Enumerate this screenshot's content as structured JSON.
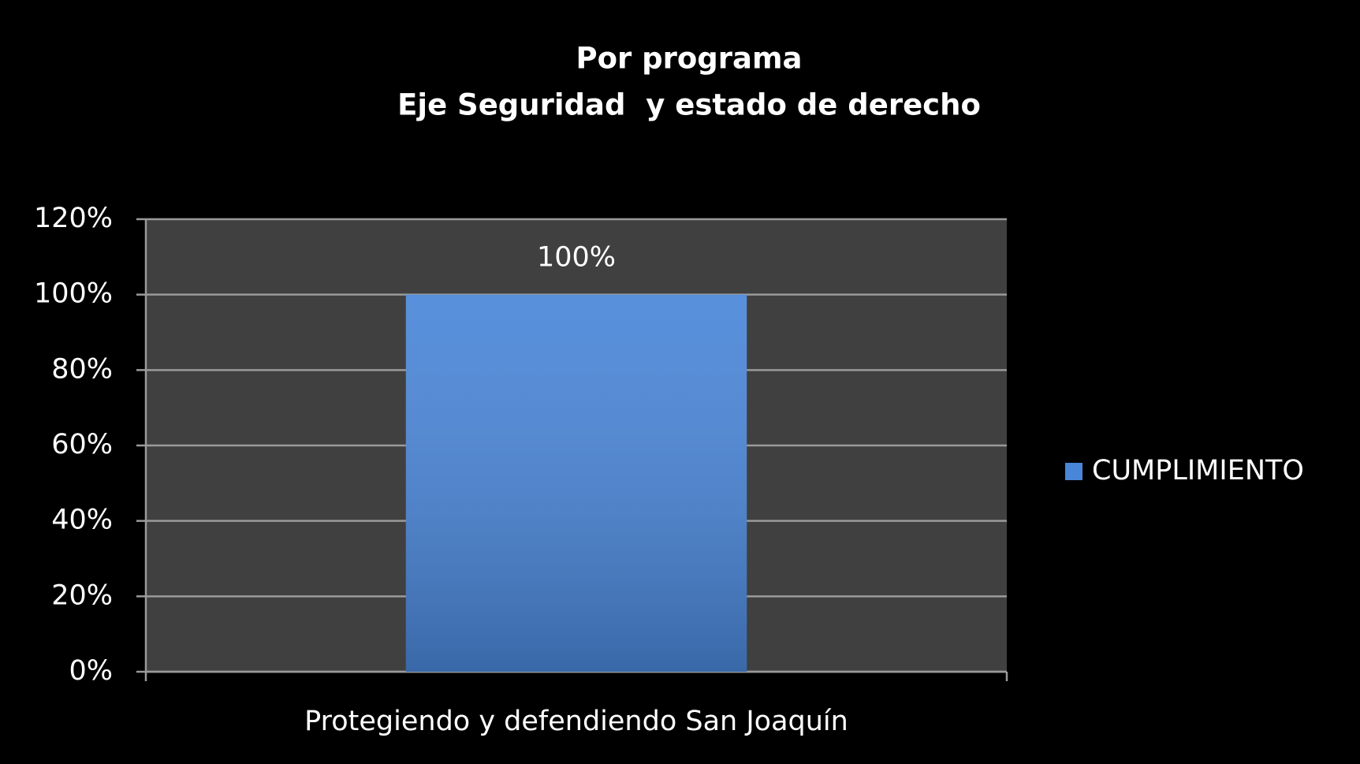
{
  "chart_data": {
    "type": "bar",
    "title": "Por programa",
    "subtitle": "Eje Seguridad  y estado de derecho",
    "categories": [
      "Protegiendo y defendiendo San Joaquín"
    ],
    "series": [
      {
        "name": "CUMPLIMIENTO",
        "color": "#4a86d8",
        "values": [
          100
        ],
        "value_labels": [
          "100%"
        ]
      }
    ],
    "ylim": [
      0,
      120
    ],
    "yticks": [
      {
        "value": 0,
        "label": "0%"
      },
      {
        "value": 20,
        "label": "20%"
      },
      {
        "value": 40,
        "label": "40%"
      },
      {
        "value": 60,
        "label": "60%"
      },
      {
        "value": 80,
        "label": "80%"
      },
      {
        "value": 100,
        "label": "100%"
      },
      {
        "value": 120,
        "label": "120%"
      }
    ],
    "grid": true,
    "legend": "right"
  }
}
